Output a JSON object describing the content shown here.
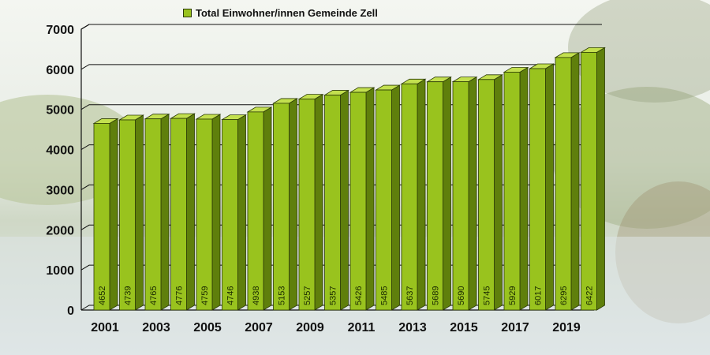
{
  "chart_data": {
    "type": "bar",
    "legend": "Total Einwohner/innen Gemeinde Zell",
    "legend_position": "top",
    "categories": [
      "2001",
      "2002",
      "2003",
      "2004",
      "2005",
      "2006",
      "2007",
      "2008",
      "2009",
      "2010",
      "2011",
      "2012",
      "2013",
      "2014",
      "2015",
      "2016",
      "2017",
      "2018",
      "2019",
      "2020"
    ],
    "x_tick_labels": [
      "2001",
      "2003",
      "2005",
      "2007",
      "2009",
      "2011",
      "2013",
      "2015",
      "2017",
      "2019"
    ],
    "series": [
      {
        "name": "Total Einwohner/innen Gemeinde Zell",
        "values": [
          4652,
          4739,
          4765,
          4776,
          4759,
          4746,
          4938,
          5153,
          5257,
          5357,
          5426,
          5485,
          5637,
          5689,
          5690,
          5745,
          5929,
          6017,
          6295,
          6422
        ],
        "data_labels": [
          "4652",
          "4739",
          "4765",
          "4776",
          "4759",
          "4746",
          "4938",
          "5153",
          "5257",
          "5357",
          "5426",
          "5485",
          "5637",
          "5689",
          "5690",
          "5745",
          "5929",
          "6017",
          "6295",
          "6422"
        ]
      }
    ],
    "y_ticks": [
      "0",
      "1000",
      "2000",
      "3000",
      "4000",
      "5000",
      "6000",
      "7000"
    ],
    "ylim": [
      0,
      7000
    ],
    "grid": true,
    "colors": {
      "bar_front": "#99c31e",
      "bar_side": "#5f7f0c",
      "bar_top": "#c3e04f",
      "outline": "#2b3a05"
    }
  }
}
